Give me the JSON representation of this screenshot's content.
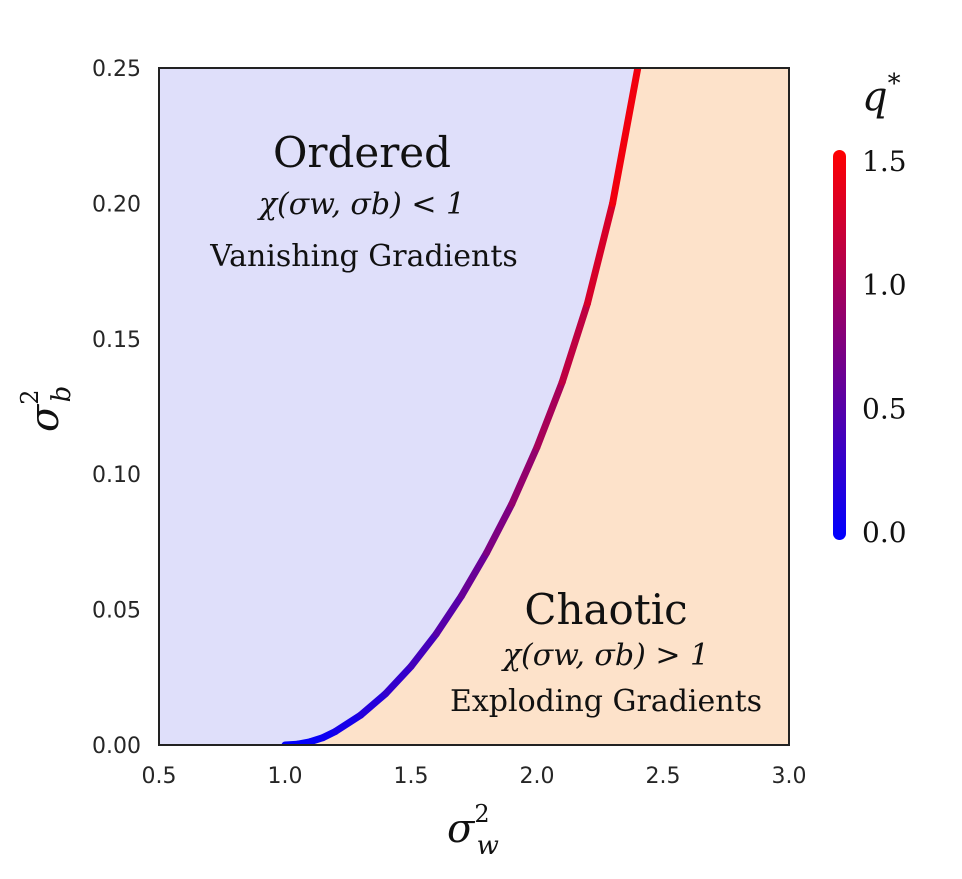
{
  "chart_data": {
    "type": "line",
    "xlabel": "σ",
    "xlabel_sup": "2",
    "xlabel_sub": "w",
    "ylabel": "σ",
    "ylabel_sup": "2",
    "ylabel_sub": "b",
    "xlim": [
      0.5,
      3.0
    ],
    "ylim": [
      0.0,
      0.25
    ],
    "x_ticks": [
      "0.5",
      "1.0",
      "1.5",
      "2.0",
      "2.5",
      "3.0"
    ],
    "y_ticks": [
      "0.00",
      "0.05",
      "0.10",
      "0.15",
      "0.20",
      "0.25"
    ],
    "regions": [
      {
        "title": "Ordered",
        "condition": "χ(σw, σb) < 1",
        "description": "Vanishing Gradients",
        "color": "#dfdffa"
      },
      {
        "title": "Chaotic",
        "condition": "χ(σw, σb) > 1",
        "description": "Exploding Gradients",
        "color": "#fde2ca"
      }
    ],
    "boundary": {
      "x": [
        1.0,
        1.05,
        1.1,
        1.15,
        1.2,
        1.3,
        1.4,
        1.5,
        1.6,
        1.7,
        1.8,
        1.9,
        2.0,
        2.1,
        2.2,
        2.3,
        2.4
      ],
      "y": [
        0.0,
        0.0003,
        0.0012,
        0.0027,
        0.005,
        0.011,
        0.019,
        0.029,
        0.041,
        0.055,
        0.071,
        0.089,
        0.11,
        0.134,
        0.163,
        0.2,
        0.25
      ],
      "q_star": [
        0.0,
        0.01,
        0.03,
        0.06,
        0.1,
        0.18,
        0.27,
        0.37,
        0.48,
        0.6,
        0.72,
        0.85,
        0.98,
        1.12,
        1.27,
        1.42,
        1.6
      ]
    },
    "colorbar": {
      "label": "q",
      "label_sup": "*",
      "ticks": [
        "0.0",
        "0.5",
        "1.0",
        "1.5"
      ],
      "range": [
        0.0,
        1.6
      ],
      "color_low": "#0000ff",
      "color_high": "#ff0000"
    }
  }
}
